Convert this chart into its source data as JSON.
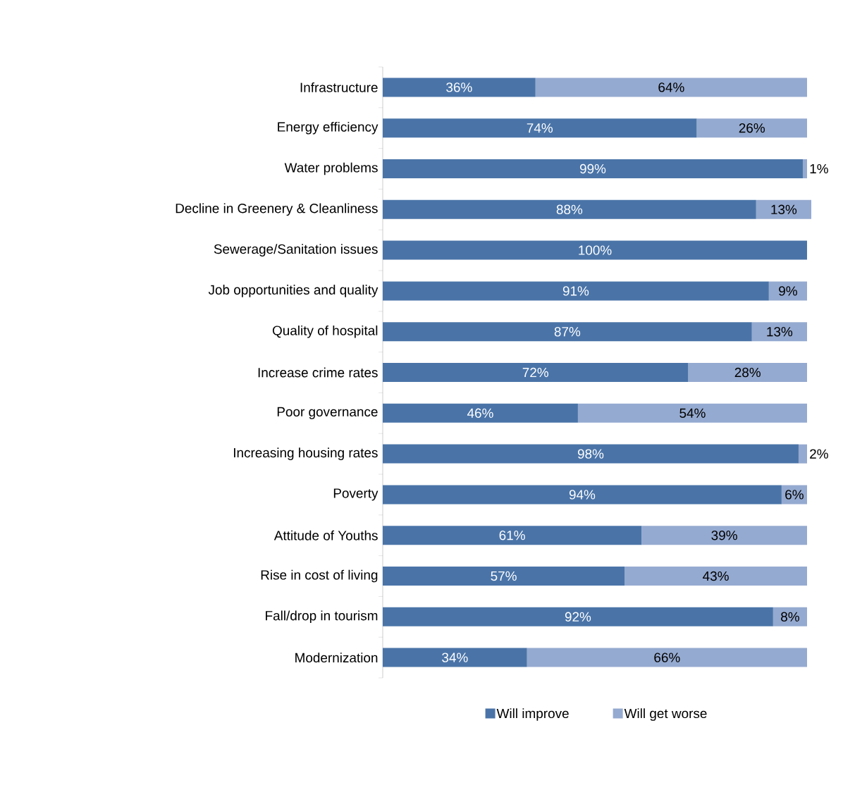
{
  "chart_data": {
    "type": "bar",
    "orientation": "horizontal",
    "stacked": true,
    "categories": [
      "Infrastructure",
      "Energy efficiency",
      "Water problems",
      "Decline in Greenery & Cleanliness",
      "Sewerage/Sanitation issues",
      "Job opportunities and quality",
      "Quality of hospital",
      "Increase crime rates",
      "Poor governance",
      "Increasing housing rates",
      "Poverty",
      "Attitude of Youths",
      "Rise in cost of living",
      "Fall/drop in tourism",
      "Modernization"
    ],
    "series": [
      {
        "name": "Will improve",
        "color": "#4a74a8",
        "values": [
          36,
          74,
          99,
          88,
          100,
          91,
          87,
          72,
          46,
          98,
          94,
          61,
          57,
          92,
          34
        ],
        "value_labels": [
          "36%",
          "74%",
          "99%",
          "88%",
          "100%",
          "91%",
          "87%",
          "72%",
          "46%",
          "98%",
          "94%",
          "61%",
          "57%",
          "92%",
          "34%"
        ]
      },
      {
        "name": "Will get worse",
        "color": "#95aad0",
        "values": [
          64,
          26,
          1,
          13,
          null,
          9,
          13,
          28,
          54,
          2,
          6,
          39,
          43,
          8,
          66
        ],
        "value_labels": [
          "64%",
          "26%",
          "1%",
          "13%",
          null,
          "9%",
          "13%",
          "28%",
          "54%",
          "2%",
          "6%",
          "39%",
          "43%",
          "8%",
          "66%"
        ]
      }
    ],
    "xlim": [
      0,
      101
    ],
    "tick_labels": "y",
    "legend": "bottom"
  }
}
